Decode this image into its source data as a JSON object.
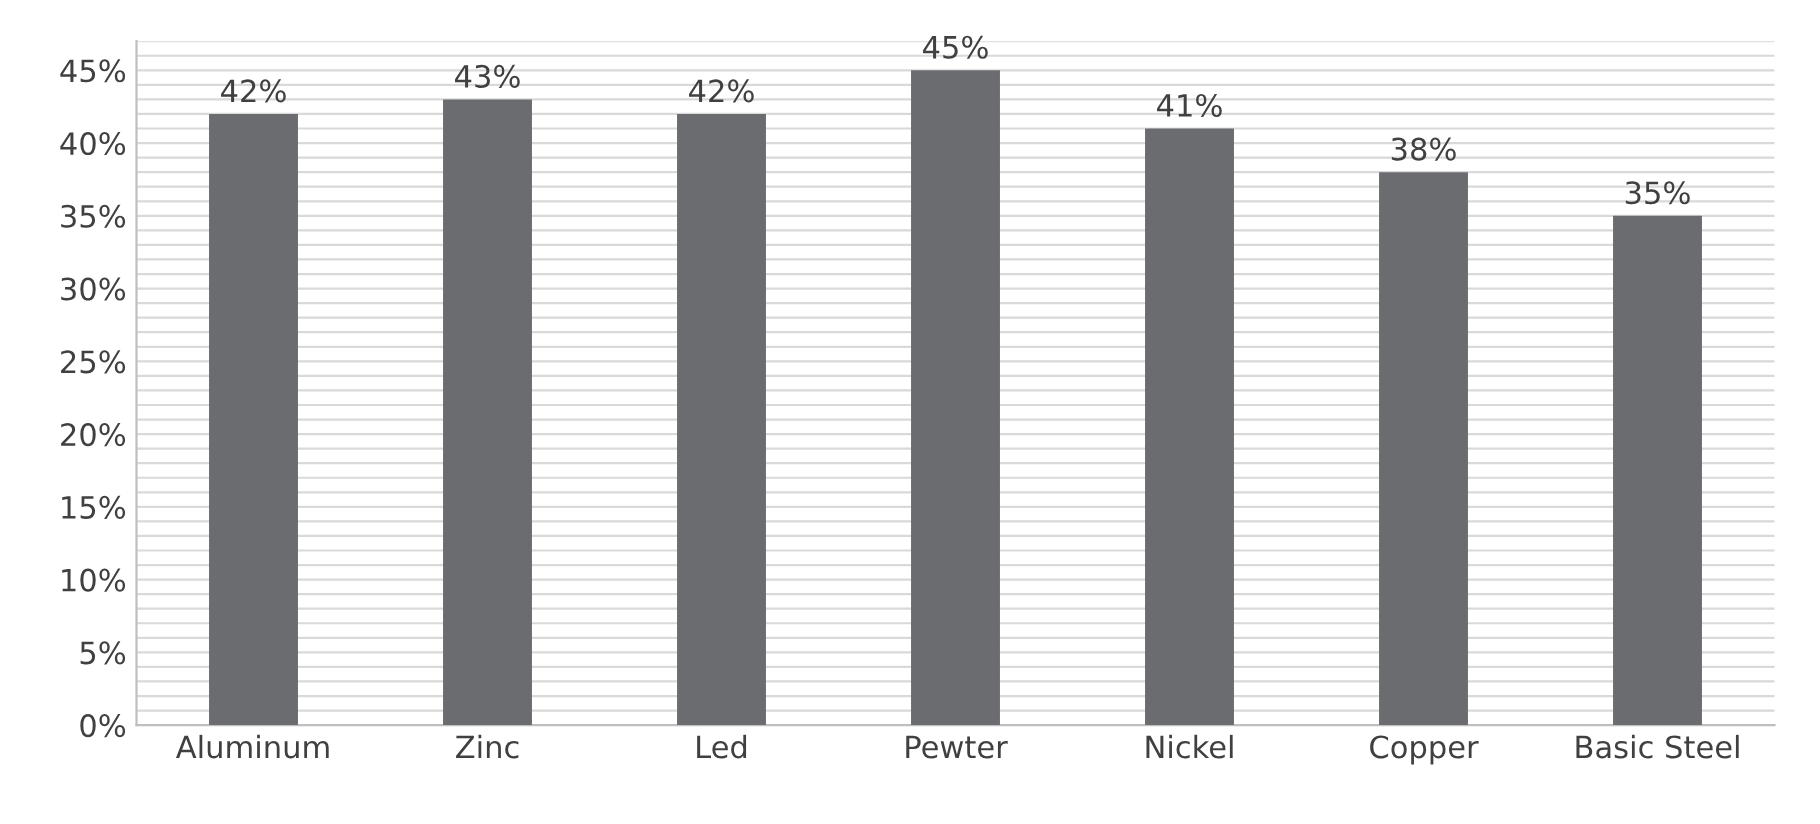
{
  "chart_data": {
    "type": "bar",
    "categories": [
      "Aluminum",
      "Zinc",
      "Led",
      "Pewter",
      "Nickel",
      "Copper",
      "Basic Steel"
    ],
    "values": [
      42,
      43,
      42,
      45,
      41,
      38,
      35
    ],
    "value_labels": [
      "42%",
      "43%",
      "42%",
      "45%",
      "41%",
      "38%",
      "35%"
    ],
    "color": "#6b6c70",
    "ylim": [
      0,
      47
    ],
    "yticks": [
      {
        "value": 0,
        "label": "0%"
      },
      {
        "value": 1,
        "label": null
      },
      {
        "value": 2,
        "label": null
      },
      {
        "value": 3,
        "label": null
      },
      {
        "value": 4,
        "label": null
      },
      {
        "value": 5,
        "label": "5%"
      },
      {
        "value": 6,
        "label": null
      },
      {
        "value": 7,
        "label": null
      },
      {
        "value": 8,
        "label": null
      },
      {
        "value": 9,
        "label": null
      },
      {
        "value": 10,
        "label": "10%"
      },
      {
        "value": 11,
        "label": null
      },
      {
        "value": 12,
        "label": null
      },
      {
        "value": 13,
        "label": null
      },
      {
        "value": 14,
        "label": null
      },
      {
        "value": 15,
        "label": "15%"
      },
      {
        "value": 16,
        "label": null
      },
      {
        "value": 17,
        "label": null
      },
      {
        "value": 18,
        "label": null
      },
      {
        "value": 19,
        "label": null
      },
      {
        "value": 20,
        "label": "20%"
      },
      {
        "value": 21,
        "label": null
      },
      {
        "value": 22,
        "label": null
      },
      {
        "value": 23,
        "label": null
      },
      {
        "value": 24,
        "label": null
      },
      {
        "value": 25,
        "label": "25%"
      },
      {
        "value": 26,
        "label": null
      },
      {
        "value": 27,
        "label": null
      },
      {
        "value": 28,
        "label": null
      },
      {
        "value": 29,
        "label": null
      },
      {
        "value": 30,
        "label": "30%"
      },
      {
        "value": 31,
        "label": null
      },
      {
        "value": 32,
        "label": null
      },
      {
        "value": 33,
        "label": null
      },
      {
        "value": 34,
        "label": null
      },
      {
        "value": 35,
        "label": "35%"
      },
      {
        "value": 36,
        "label": null
      },
      {
        "value": 37,
        "label": null
      },
      {
        "value": 38,
        "label": null
      },
      {
        "value": 39,
        "label": null
      },
      {
        "value": 40,
        "label": "40%"
      },
      {
        "value": 41,
        "label": null
      },
      {
        "value": 42,
        "label": null
      },
      {
        "value": 43,
        "label": null
      },
      {
        "value": 44,
        "label": null
      },
      {
        "value": 45,
        "label": "45%"
      },
      {
        "value": 46,
        "label": null
      },
      {
        "value": 47,
        "label": null
      }
    ],
    "grid": "y"
  }
}
